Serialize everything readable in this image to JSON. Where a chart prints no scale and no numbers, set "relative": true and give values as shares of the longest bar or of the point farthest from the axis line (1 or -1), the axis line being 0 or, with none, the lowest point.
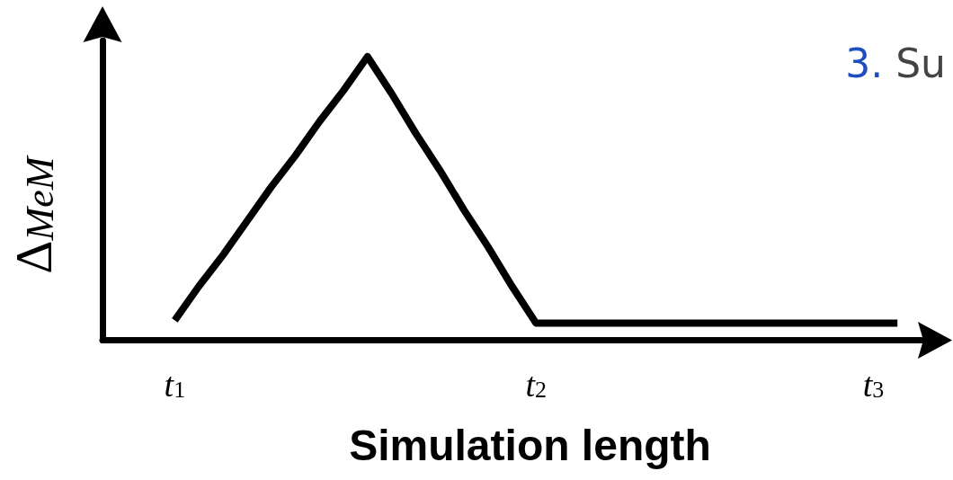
{
  "chart_data": {
    "type": "line",
    "xlabel": "Simulation length",
    "ylabel": "Δ$_{MeM}$",
    "categories": [
      null,
      null,
      null,
      "t$_{1}$",
      null,
      null,
      null,
      null,
      null,
      null,
      null,
      null,
      null,
      null,
      null,
      null,
      null,
      null,
      "t$_{2}$",
      null,
      null,
      null,
      null,
      null,
      null,
      null,
      null,
      null,
      null,
      null,
      null,
      null,
      "t$_{3}$",
      null,
      null
    ],
    "values": [
      null,
      null,
      null,
      0.07,
      0.19,
      0.3,
      0.42,
      0.54,
      0.65,
      0.77,
      0.88,
      1,
      0.87,
      0.73,
      0.6,
      0.46,
      0.33,
      0.19,
      0.06,
      0.06,
      0.06,
      0.06,
      0.06,
      0.06,
      0.06,
      0.06,
      0.06,
      0.06,
      0.06,
      0.06,
      0.06,
      0.06,
      0.06,
      0.06,
      null
    ],
    "color": "#000000",
    "relative": true,
    "tick_labels": "x",
    "annotations": [
      "3. Su"
    ]
  }
}
